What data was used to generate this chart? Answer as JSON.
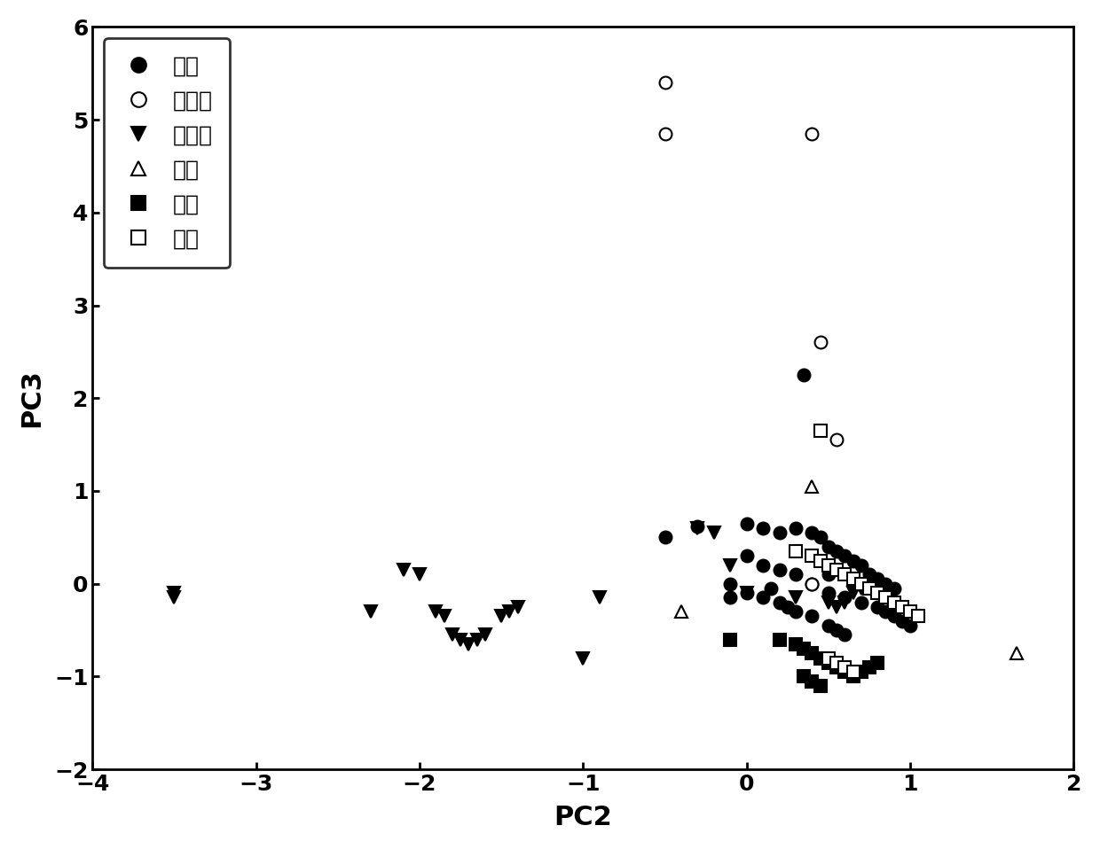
{
  "title": "",
  "xlabel": "PC2",
  "ylabel": "PC3",
  "xlim": [
    -4,
    2
  ],
  "ylim": [
    -2,
    6
  ],
  "xticks": [
    -4,
    -3,
    -2,
    -1,
    0,
    1,
    2
  ],
  "yticks": [
    -2,
    -1,
    0,
    1,
    2,
    3,
    4,
    5,
    6
  ],
  "series": {
    "korea": {
      "marker": "o",
      "filled": true,
      "points": [
        [
          -0.5,
          0.5
        ],
        [
          -0.3,
          0.62
        ],
        [
          0.0,
          0.65
        ],
        [
          0.1,
          0.6
        ],
        [
          0.2,
          0.55
        ],
        [
          0.3,
          0.6
        ],
        [
          0.4,
          0.55
        ],
        [
          0.45,
          0.5
        ],
        [
          0.5,
          0.4
        ],
        [
          0.55,
          0.35
        ],
        [
          0.6,
          0.3
        ],
        [
          0.65,
          0.25
        ],
        [
          0.7,
          0.2
        ],
        [
          0.75,
          0.1
        ],
        [
          0.8,
          0.05
        ],
        [
          0.85,
          0.0
        ],
        [
          0.9,
          -0.05
        ],
        [
          0.0,
          0.3
        ],
        [
          0.1,
          0.2
        ],
        [
          0.2,
          0.15
        ],
        [
          0.3,
          0.1
        ],
        [
          0.4,
          0.0
        ],
        [
          0.5,
          -0.1
        ],
        [
          0.6,
          -0.15
        ],
        [
          0.7,
          -0.2
        ],
        [
          0.8,
          -0.25
        ],
        [
          0.85,
          -0.3
        ],
        [
          0.9,
          -0.35
        ],
        [
          0.95,
          -0.4
        ],
        [
          1.0,
          -0.45
        ],
        [
          -0.1,
          0.0
        ],
        [
          0.0,
          -0.1
        ],
        [
          0.1,
          -0.15
        ],
        [
          0.2,
          -0.2
        ],
        [
          0.3,
          -0.3
        ],
        [
          0.4,
          -0.35
        ],
        [
          0.5,
          -0.45
        ],
        [
          0.55,
          -0.5
        ],
        [
          0.6,
          -0.55
        ],
        [
          0.35,
          2.25
        ],
        [
          -0.1,
          -0.15
        ],
        [
          0.15,
          -0.05
        ],
        [
          0.25,
          -0.25
        ],
        [
          0.5,
          0.1
        ]
      ]
    },
    "singapore": {
      "marker": "o",
      "filled": false,
      "points": [
        [
          -0.5,
          5.4
        ],
        [
          -0.5,
          4.85
        ],
        [
          0.4,
          4.85
        ],
        [
          0.45,
          2.6
        ],
        [
          0.55,
          1.55
        ],
        [
          0.4,
          0.0
        ]
      ]
    },
    "ireland": {
      "marker": "v",
      "filled": true,
      "points": [
        [
          -3.5,
          -0.1
        ],
        [
          -3.5,
          -0.15
        ],
        [
          -2.3,
          -0.3
        ],
        [
          -2.1,
          0.15
        ],
        [
          -2.0,
          0.1
        ],
        [
          -1.9,
          -0.3
        ],
        [
          -1.85,
          -0.35
        ],
        [
          -1.8,
          -0.55
        ],
        [
          -1.75,
          -0.6
        ],
        [
          -1.7,
          -0.65
        ],
        [
          -1.65,
          -0.6
        ],
        [
          -1.6,
          -0.55
        ],
        [
          -1.5,
          -0.35
        ],
        [
          -1.45,
          -0.3
        ],
        [
          -1.4,
          -0.25
        ],
        [
          -1.0,
          -0.8
        ],
        [
          -0.9,
          -0.15
        ],
        [
          -0.3,
          0.6
        ],
        [
          -0.2,
          0.55
        ],
        [
          -0.1,
          0.2
        ],
        [
          0.0,
          -0.1
        ],
        [
          0.3,
          -0.15
        ],
        [
          0.5,
          -0.2
        ],
        [
          0.55,
          -0.25
        ],
        [
          0.6,
          -0.2
        ],
        [
          0.65,
          -0.1
        ],
        [
          0.7,
          -0.05
        ],
        [
          0.75,
          0.0
        ]
      ]
    },
    "netherlands": {
      "marker": "^",
      "filled": false,
      "points": [
        [
          -0.4,
          -0.3
        ],
        [
          1.65,
          -0.75
        ],
        [
          0.4,
          1.05
        ]
      ]
    },
    "germany": {
      "marker": "s",
      "filled": true,
      "points": [
        [
          0.2,
          -0.6
        ],
        [
          0.3,
          -0.65
        ],
        [
          0.35,
          -0.7
        ],
        [
          0.4,
          -0.75
        ],
        [
          0.45,
          -0.8
        ],
        [
          0.5,
          -0.85
        ],
        [
          0.55,
          -0.9
        ],
        [
          0.6,
          -0.95
        ],
        [
          0.65,
          -1.0
        ],
        [
          0.7,
          -0.95
        ],
        [
          0.75,
          -0.9
        ],
        [
          0.8,
          -0.85
        ],
        [
          0.35,
          -1.0
        ],
        [
          0.4,
          -1.05
        ],
        [
          0.45,
          -1.1
        ],
        [
          -0.1,
          -0.6
        ]
      ]
    },
    "switzerland": {
      "marker": "s",
      "filled": false,
      "points": [
        [
          0.3,
          0.35
        ],
        [
          0.4,
          0.3
        ],
        [
          0.45,
          0.25
        ],
        [
          0.5,
          0.2
        ],
        [
          0.55,
          0.15
        ],
        [
          0.6,
          0.1
        ],
        [
          0.65,
          0.05
        ],
        [
          0.7,
          0.0
        ],
        [
          0.75,
          -0.05
        ],
        [
          0.8,
          -0.1
        ],
        [
          0.85,
          -0.15
        ],
        [
          0.9,
          -0.2
        ],
        [
          0.95,
          -0.25
        ],
        [
          1.0,
          -0.3
        ],
        [
          1.05,
          -0.35
        ],
        [
          0.45,
          1.65
        ],
        [
          0.5,
          -0.8
        ],
        [
          0.55,
          -0.85
        ],
        [
          0.6,
          -0.9
        ],
        [
          0.65,
          -0.95
        ]
      ]
    }
  }
}
